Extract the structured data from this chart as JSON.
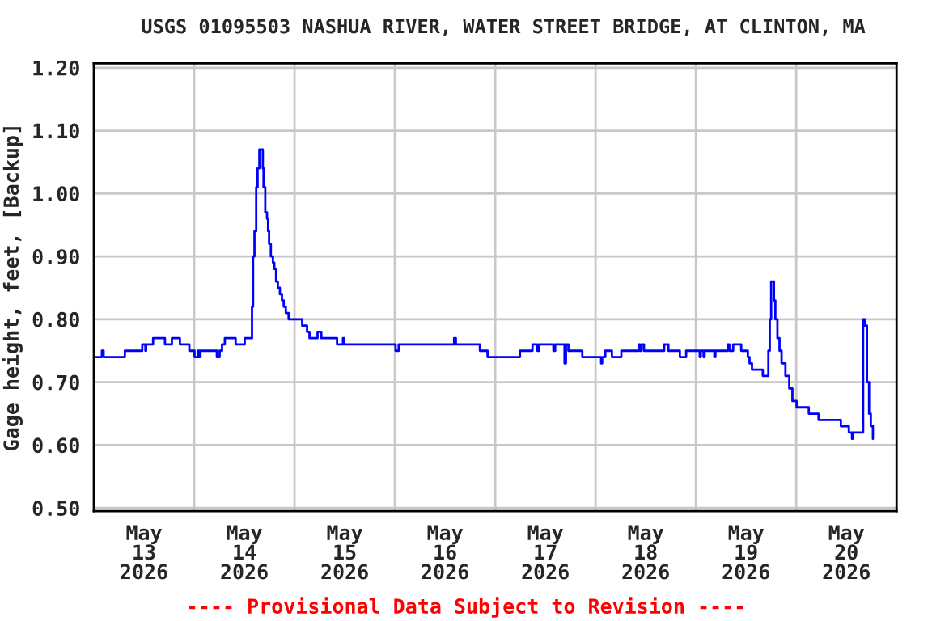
{
  "chart_data": {
    "type": "step",
    "title": "USGS 01095503 NASHUA RIVER, WATER STREET BRIDGE, AT CLINTON, MA",
    "ylabel": "Gage height, feet, [Backup]",
    "annotations": [
      "---- Provisional Data Subject to Revision ----"
    ],
    "x": [
      "2026-05-13T00:00",
      "2026-05-13T01:55",
      "2026-05-13T02:20",
      "2026-05-13T07:25",
      "2026-05-13T11:35",
      "2026-05-13T12:20",
      "2026-05-13T12:30",
      "2026-05-13T14:10",
      "2026-05-13T17:00",
      "2026-05-13T18:40",
      "2026-05-13T20:35",
      "2026-05-13T22:50",
      "2026-05-14T00:05",
      "2026-05-14T00:50",
      "2026-05-14T01:10",
      "2026-05-14T01:30",
      "2026-05-14T05:25",
      "2026-05-14T06:05",
      "2026-05-14T06:40",
      "2026-05-14T07:20",
      "2026-05-14T09:55",
      "2026-05-14T12:05",
      "2026-05-14T13:50",
      "2026-05-14T14:05",
      "2026-05-14T14:25",
      "2026-05-14T14:50",
      "2026-05-14T15:10",
      "2026-05-14T15:35",
      "2026-05-14T16:25",
      "2026-05-14T16:35",
      "2026-05-14T17:00",
      "2026-05-14T17:25",
      "2026-05-14T17:40",
      "2026-05-14T17:55",
      "2026-05-14T18:20",
      "2026-05-14T18:50",
      "2026-05-14T19:10",
      "2026-05-14T19:35",
      "2026-05-14T20:00",
      "2026-05-14T20:30",
      "2026-05-14T21:00",
      "2026-05-14T21:25",
      "2026-05-14T21:55",
      "2026-05-14T22:35",
      "2026-05-15T01:50",
      "2026-05-15T03:00",
      "2026-05-15T03:35",
      "2026-05-15T05:30",
      "2026-05-15T06:25",
      "2026-05-15T10:10",
      "2026-05-15T11:35",
      "2026-05-15T11:55",
      "2026-05-16T00:10",
      "2026-05-16T00:55",
      "2026-05-16T14:10",
      "2026-05-16T14:35",
      "2026-05-16T20:20",
      "2026-05-16T22:10",
      "2026-05-17T05:55",
      "2026-05-17T08:55",
      "2026-05-17T10:05",
      "2026-05-17T10:30",
      "2026-05-17T13:55",
      "2026-05-17T14:20",
      "2026-05-17T16:35",
      "2026-05-17T16:55",
      "2026-05-17T17:30",
      "2026-05-17T20:50",
      "2026-05-18T01:20",
      "2026-05-18T01:35",
      "2026-05-18T02:20",
      "2026-05-18T03:55",
      "2026-05-18T06:10",
      "2026-05-18T10:20",
      "2026-05-18T10:35",
      "2026-05-18T11:00",
      "2026-05-18T11:35",
      "2026-05-18T16:25",
      "2026-05-18T17:25",
      "2026-05-18T20:10",
      "2026-05-18T21:40",
      "2026-05-19T00:55",
      "2026-05-19T01:10",
      "2026-05-19T01:50",
      "2026-05-19T02:05",
      "2026-05-19T04:25",
      "2026-05-19T04:40",
      "2026-05-19T07:35",
      "2026-05-19T08:00",
      "2026-05-19T08:55",
      "2026-05-19T10:50",
      "2026-05-19T12:25",
      "2026-05-19T12:50",
      "2026-05-19T13:25",
      "2026-05-19T14:20",
      "2026-05-19T16:00",
      "2026-05-19T17:20",
      "2026-05-19T17:40",
      "2026-05-19T18:00",
      "2026-05-19T18:40",
      "2026-05-19T19:00",
      "2026-05-19T19:30",
      "2026-05-19T20:00",
      "2026-05-19T20:30",
      "2026-05-19T21:25",
      "2026-05-19T22:20",
      "2026-05-19T23:05",
      "2026-05-20T00:05",
      "2026-05-20T01:40",
      "2026-05-20T03:00",
      "2026-05-20T05:20",
      "2026-05-20T10:40",
      "2026-05-20T12:35",
      "2026-05-20T13:20",
      "2026-05-20T13:30",
      "2026-05-20T16:00",
      "2026-05-20T16:25",
      "2026-05-20T16:55",
      "2026-05-20T17:25",
      "2026-05-20T17:50",
      "2026-05-20T18:20"
    ],
    "series": [
      {
        "color": "#0000ff",
        "values": [
          0.74,
          0.75,
          0.74,
          0.75,
          0.76,
          0.75,
          0.76,
          0.77,
          0.76,
          0.77,
          0.76,
          0.75,
          0.74,
          0.75,
          0.74,
          0.75,
          0.74,
          0.75,
          0.76,
          0.77,
          0.76,
          0.77,
          0.82,
          0.9,
          0.94,
          1.01,
          1.04,
          1.07,
          1.04,
          1.01,
          0.97,
          0.96,
          0.94,
          0.92,
          0.9,
          0.89,
          0.88,
          0.86,
          0.85,
          0.84,
          0.83,
          0.82,
          0.81,
          0.8,
          0.79,
          0.78,
          0.77,
          0.78,
          0.77,
          0.76,
          0.77,
          0.76,
          0.75,
          0.76,
          0.77,
          0.76,
          0.75,
          0.74,
          0.75,
          0.76,
          0.75,
          0.76,
          0.75,
          0.76,
          0.73,
          0.76,
          0.75,
          0.74,
          0.73,
          0.74,
          0.75,
          0.74,
          0.75,
          0.76,
          0.75,
          0.76,
          0.75,
          0.76,
          0.75,
          0.74,
          0.75,
          0.74,
          0.75,
          0.74,
          0.75,
          0.74,
          0.75,
          0.76,
          0.75,
          0.76,
          0.75,
          0.74,
          0.73,
          0.72,
          0.72,
          0.71,
          0.75,
          0.8,
          0.86,
          0.83,
          0.8,
          0.77,
          0.75,
          0.73,
          0.71,
          0.69,
          0.67,
          0.66,
          0.66,
          0.65,
          0.64,
          0.63,
          0.62,
          0.61,
          0.62,
          0.8,
          0.79,
          0.7,
          0.65,
          0.63,
          0.61
        ]
      }
    ],
    "xlim": [
      "2026-05-13T00:00",
      "2026-05-21T00:00"
    ],
    "xticks": [
      {
        "value": "2026-05-13T12:00",
        "label": "May\n13\n2026"
      },
      {
        "value": "2026-05-14T00:00",
        "label": null
      },
      {
        "value": "2026-05-14T12:00",
        "label": "May\n14\n2026"
      },
      {
        "value": "2026-05-15T00:00",
        "label": null
      },
      {
        "value": "2026-05-15T12:00",
        "label": "May\n15\n2026"
      },
      {
        "value": "2026-05-16T00:00",
        "label": null
      },
      {
        "value": "2026-05-16T12:00",
        "label": "May\n16\n2026"
      },
      {
        "value": "2026-05-17T00:00",
        "label": null
      },
      {
        "value": "2026-05-17T12:00",
        "label": "May\n17\n2026"
      },
      {
        "value": "2026-05-18T00:00",
        "label": null
      },
      {
        "value": "2026-05-18T12:00",
        "label": "May\n18\n2026"
      },
      {
        "value": "2026-05-19T00:00",
        "label": null
      },
      {
        "value": "2026-05-19T12:00",
        "label": "May\n19\n2026"
      },
      {
        "value": "2026-05-20T00:00",
        "label": null
      },
      {
        "value": "2026-05-20T12:00",
        "label": "May\n20\n2026"
      }
    ],
    "ylim": [
      0.495,
      1.207
    ],
    "yticks": [
      {
        "value": 0.5,
        "label": "0.50"
      },
      {
        "value": 0.6,
        "label": "0.60"
      },
      {
        "value": 0.7,
        "label": "0.70"
      },
      {
        "value": 0.8,
        "label": "0.80"
      },
      {
        "value": 0.9,
        "label": "0.90"
      },
      {
        "value": 1.0,
        "label": "1.00"
      },
      {
        "value": 1.1,
        "label": "1.10"
      },
      {
        "value": 1.2,
        "label": "1.20"
      }
    ],
    "grid": true
  }
}
